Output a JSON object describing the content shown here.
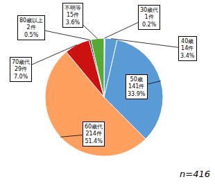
{
  "chart_data": {
    "type": "pie",
    "categories": [
      "30歳代\n1件\n0.2%",
      "40歳\n14件\n3.4%",
      "50歳\n141件\n33.9%",
      "60歳代\n214件\n51.4%",
      "70歳代\n29件\n7.0%",
      "80歳以上\n2件\n0.5%",
      "不明等\n15件\n3.6%"
    ],
    "values": [
      1,
      14,
      141,
      214,
      29,
      2,
      15
    ],
    "colors": [
      "#FF2020",
      "#5B9BD5",
      "#5B9BD5",
      "#FFA060",
      "#CC1111",
      "#222222",
      "#55AA33"
    ],
    "annotations": [
      "n=416"
    ]
  }
}
